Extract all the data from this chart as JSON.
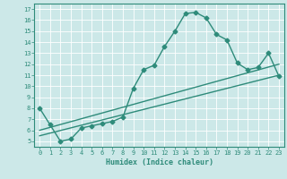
{
  "xlabel": "Humidex (Indice chaleur)",
  "ylabel": "",
  "color": "#2e8b7a",
  "bg_color": "#cce8e8",
  "grid_color": "#b0d8d8",
  "xlim": [
    -0.5,
    23.5
  ],
  "ylim": [
    4.5,
    17.5
  ],
  "xticks": [
    0,
    1,
    2,
    3,
    4,
    5,
    6,
    7,
    8,
    9,
    10,
    11,
    12,
    13,
    14,
    15,
    16,
    17,
    18,
    19,
    20,
    21,
    22,
    23
  ],
  "yticks": [
    5,
    6,
    7,
    8,
    9,
    10,
    11,
    12,
    13,
    14,
    15,
    16,
    17
  ],
  "line1_x": [
    0,
    1,
    2,
    3,
    4,
    5,
    6,
    7,
    8,
    9,
    10,
    11,
    12,
    13,
    14,
    15,
    16,
    17,
    18,
    19,
    20,
    21,
    22,
    23
  ],
  "line1_y": [
    8.0,
    6.5,
    5.0,
    5.2,
    6.2,
    6.4,
    6.6,
    6.8,
    7.2,
    9.8,
    11.5,
    11.9,
    13.6,
    15.0,
    16.6,
    16.7,
    16.2,
    14.7,
    14.2,
    12.1,
    11.5,
    11.7,
    13.0,
    10.9
  ],
  "line2_x": [
    0,
    23
  ],
  "line2_y": [
    5.5,
    11.0
  ],
  "line3_x": [
    0,
    23
  ],
  "line3_y": [
    6.0,
    12.0
  ],
  "marker": "D",
  "markersize": 2.5,
  "linewidth": 1.0
}
